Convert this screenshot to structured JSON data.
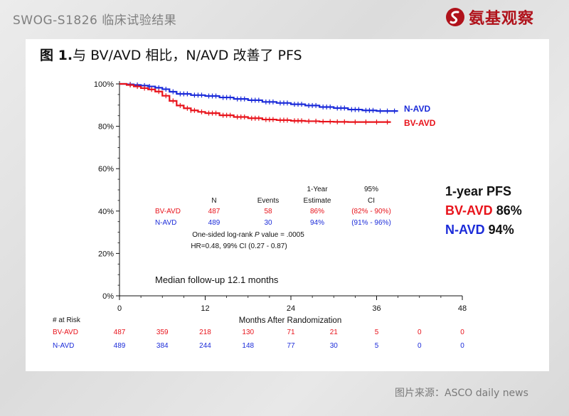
{
  "header": {
    "title": "SWOG-S1826 临床试验结果",
    "logo_text": "氨基观察"
  },
  "figure": {
    "title_bold": "图 1.",
    "title_rest": "与 BV/AVD 相比，N/AVD 改善了 PFS"
  },
  "source_note": "图片来源：ASCO daily news",
  "colors": {
    "bv": "#e8131b",
    "n": "#1b2bd9",
    "text": "#111111"
  },
  "pfs_box": {
    "title": "1-year PFS",
    "bv_name": "BV-AVD",
    "bv_value": "86%",
    "n_name": "N-AVD",
    "n_value": "94%"
  },
  "stats_table": {
    "headers": {
      "n": "N",
      "events": "Events",
      "estimate_l1": "1-Year",
      "estimate_l2": "Estimate",
      "ci_l1": "95%",
      "ci_l2": "CI"
    },
    "rows": [
      {
        "arm": "BV-AVD",
        "n": "487",
        "events": "58",
        "estimate": "86%",
        "ci": "(82% - 90%)"
      },
      {
        "arm": "N-AVD",
        "n": "489",
        "events": "30",
        "estimate": "94%",
        "ci": "(91% - 96%)"
      }
    ],
    "logrank_prefix": "One-sided log-rank ",
    "logrank_p": "P",
    "logrank_suffix": " value = .0005",
    "hr": "HR=0.48, 99% CI (0.27 - 0.87)"
  },
  "followup": "Median follow-up 12.1 months",
  "risk": {
    "label": "# at Risk",
    "rows": [
      {
        "arm": "BV-AVD",
        "values": [
          "487",
          "359",
          "218",
          "130",
          "71",
          "21",
          "5",
          "0",
          "0"
        ]
      },
      {
        "arm": "N-AVD",
        "values": [
          "489",
          "384",
          "244",
          "148",
          "77",
          "30",
          "5",
          "0",
          "0"
        ]
      }
    ]
  },
  "chart_data": {
    "type": "line",
    "title": "",
    "xlabel": "Months After Randomization",
    "ylabel": "",
    "xlim": [
      0,
      48
    ],
    "ylim": [
      0,
      100
    ],
    "x_ticks": [
      0,
      12,
      24,
      36,
      48
    ],
    "x_tick_labels": [
      "0",
      "12",
      "24",
      "36",
      "48"
    ],
    "y_ticks": [
      0,
      20,
      40,
      60,
      80,
      100
    ],
    "y_tick_labels": [
      "0%",
      "20%",
      "40%",
      "60%",
      "80%",
      "100%"
    ],
    "grid": false,
    "series": [
      {
        "name": "N-AVD",
        "color": "#1b2bd9",
        "points": [
          [
            0,
            100
          ],
          [
            1,
            99.8
          ],
          [
            2,
            99.5
          ],
          [
            3,
            99.2
          ],
          [
            4,
            98.8
          ],
          [
            5,
            98.2
          ],
          [
            6,
            97.5
          ],
          [
            7,
            96.3
          ],
          [
            8,
            95.3
          ],
          [
            10,
            94.7
          ],
          [
            12,
            94.3
          ],
          [
            14,
            93.6
          ],
          [
            16,
            92.9
          ],
          [
            18,
            92.3
          ],
          [
            20,
            91.5
          ],
          [
            22,
            91
          ],
          [
            24,
            90.4
          ],
          [
            26,
            89.8
          ],
          [
            28,
            89.1
          ],
          [
            30,
            88.6
          ],
          [
            32,
            87.9
          ],
          [
            34,
            87.5
          ],
          [
            36,
            87.2
          ],
          [
            39,
            87.2
          ]
        ],
        "censor_x": [
          1.5,
          2.5,
          3.5,
          4.2,
          5.5,
          6.5,
          7.5,
          8.5,
          9,
          9.5,
          10.5,
          11,
          11.5,
          12.5,
          13,
          13.5,
          14.5,
          15,
          15.5,
          16.5,
          17,
          17.5,
          18.5,
          19,
          19.5,
          20.5,
          21,
          21.5,
          22.5,
          23,
          23.5,
          24.5,
          25,
          25.5,
          26.5,
          27,
          27.5,
          28.5,
          29,
          29.5,
          30.5,
          31,
          31.5,
          32.5,
          33,
          33.5,
          34.5,
          35,
          35.5,
          36.5,
          37.5,
          38.5
        ]
      },
      {
        "name": "BV-AVD",
        "color": "#e8131b",
        "points": [
          [
            0,
            100
          ],
          [
            1,
            99.5
          ],
          [
            2,
            98.8
          ],
          [
            3,
            98
          ],
          [
            4,
            97.4
          ],
          [
            5,
            96.4
          ],
          [
            6,
            94.4
          ],
          [
            7,
            92
          ],
          [
            8,
            89.8
          ],
          [
            9,
            88.5
          ],
          [
            10,
            87.5
          ],
          [
            11,
            86.8
          ],
          [
            12,
            86.2
          ],
          [
            14,
            85.2
          ],
          [
            16,
            84.4
          ],
          [
            18,
            83.8
          ],
          [
            20,
            83.2
          ],
          [
            22,
            82.9
          ],
          [
            24,
            82.6
          ],
          [
            26,
            82.4
          ],
          [
            28,
            82.2
          ],
          [
            30,
            82.1
          ],
          [
            32,
            82
          ],
          [
            34,
            82
          ],
          [
            38,
            82
          ]
        ],
        "censor_x": [
          1.5,
          2.5,
          3.5,
          4.5,
          5.5,
          6.5,
          7.5,
          8.5,
          9.5,
          10,
          10.5,
          11.5,
          12.5,
          13,
          13.5,
          14.5,
          15,
          15.5,
          16.5,
          17,
          17.5,
          18.5,
          19,
          19.5,
          20.5,
          21,
          21.5,
          22.5,
          23,
          23.5,
          24.5,
          25,
          25.5,
          26.5,
          27.5,
          28.5,
          29.5,
          30.5,
          31.5,
          33,
          34.5,
          36,
          37.5
        ]
      }
    ],
    "series_labels": [
      "N-AVD",
      "BV-AVD"
    ]
  }
}
